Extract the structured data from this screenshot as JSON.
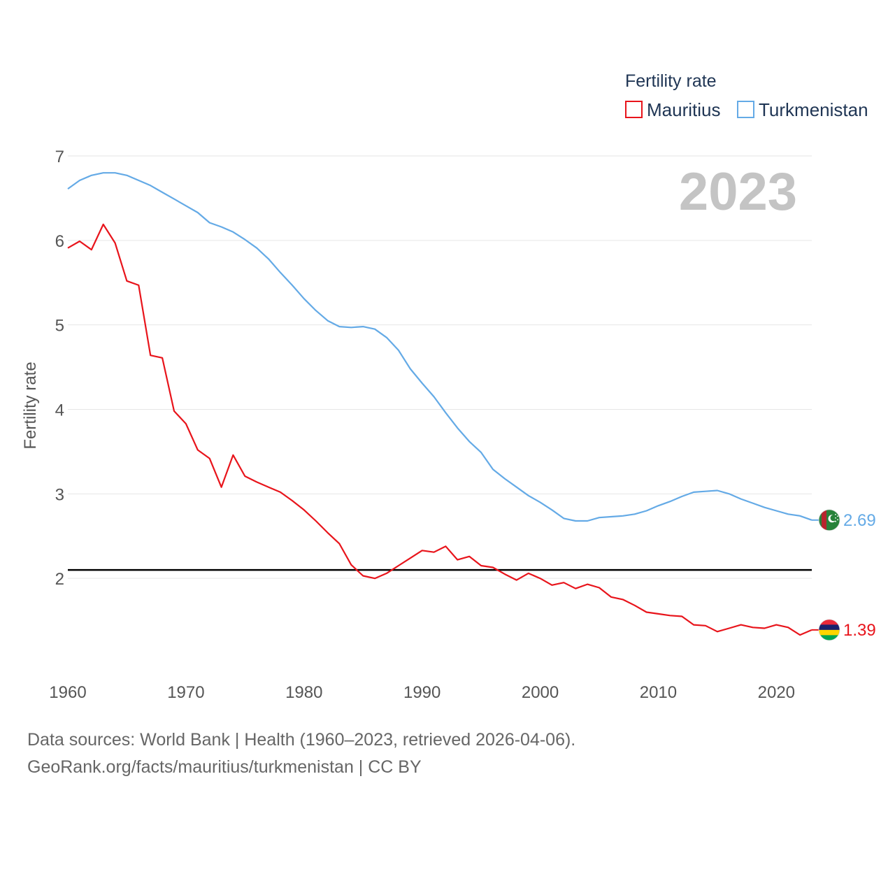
{
  "chart_data": {
    "type": "line",
    "ylabel": "Fertility rate",
    "legend_title": "Fertility rate",
    "year_label": "2023",
    "x": [
      1960,
      1961,
      1962,
      1963,
      1964,
      1965,
      1966,
      1967,
      1968,
      1969,
      1970,
      1971,
      1972,
      1973,
      1974,
      1975,
      1976,
      1977,
      1978,
      1979,
      1980,
      1981,
      1982,
      1983,
      1984,
      1985,
      1986,
      1987,
      1988,
      1989,
      1990,
      1991,
      1992,
      1993,
      1994,
      1995,
      1996,
      1997,
      1998,
      1999,
      2000,
      2001,
      2002,
      2003,
      2004,
      2005,
      2006,
      2007,
      2008,
      2009,
      2010,
      2011,
      2012,
      2013,
      2014,
      2015,
      2016,
      2017,
      2018,
      2019,
      2020,
      2021,
      2022,
      2023
    ],
    "xlim": [
      1960,
      2023
    ],
    "ylim": [
      1,
      7
    ],
    "xticks": [
      "1960",
      "1970",
      "1980",
      "1990",
      "2000",
      "2010",
      "2020"
    ],
    "yticks": [
      "2",
      "3",
      "4",
      "5",
      "6",
      "7"
    ],
    "reference_line": 2.1,
    "series": [
      {
        "name": "Mauritius",
        "color": "#e8141b",
        "end_label": "1.39",
        "flag": "mauritius-flag",
        "values": [
          5.91,
          5.99,
          5.89,
          6.19,
          5.97,
          5.52,
          5.47,
          4.64,
          4.61,
          3.98,
          3.83,
          3.52,
          3.42,
          3.08,
          3.46,
          3.21,
          3.14,
          3.08,
          3.02,
          2.92,
          2.81,
          2.68,
          2.54,
          2.41,
          2.16,
          2.03,
          2.0,
          2.06,
          2.15,
          2.24,
          2.33,
          2.31,
          2.38,
          2.22,
          2.26,
          2.15,
          2.13,
          2.05,
          1.98,
          2.06,
          2.0,
          1.92,
          1.95,
          1.88,
          1.93,
          1.89,
          1.78,
          1.75,
          1.68,
          1.6,
          1.58,
          1.56,
          1.55,
          1.45,
          1.44,
          1.37,
          1.41,
          1.45,
          1.42,
          1.41,
          1.45,
          1.42,
          1.33,
          1.39
        ]
      },
      {
        "name": "Turkmenistan",
        "color": "#64aae6",
        "end_label": "2.69",
        "flag": "turkmenistan-flag",
        "values": [
          6.61,
          6.71,
          6.77,
          6.8,
          6.8,
          6.77,
          6.71,
          6.65,
          6.57,
          6.49,
          6.41,
          6.33,
          6.21,
          6.16,
          6.1,
          6.01,
          5.91,
          5.78,
          5.62,
          5.47,
          5.31,
          5.17,
          5.05,
          4.98,
          4.97,
          4.98,
          4.95,
          4.85,
          4.7,
          4.48,
          4.31,
          4.15,
          3.96,
          3.78,
          3.62,
          3.49,
          3.29,
          3.18,
          3.08,
          2.98,
          2.9,
          2.81,
          2.71,
          2.68,
          2.68,
          2.72,
          2.73,
          2.74,
          2.76,
          2.8,
          2.86,
          2.91,
          2.97,
          3.02,
          3.03,
          3.04,
          3.0,
          2.94,
          2.89,
          2.84,
          2.8,
          2.76,
          2.74,
          2.69
        ]
      }
    ]
  },
  "footer": {
    "line1": "Data sources: World Bank | Health (1960–2023, retrieved 2026-04-06).",
    "line2": "GeoRank.org/facts/mauritius/turkmenistan | CC BY"
  }
}
